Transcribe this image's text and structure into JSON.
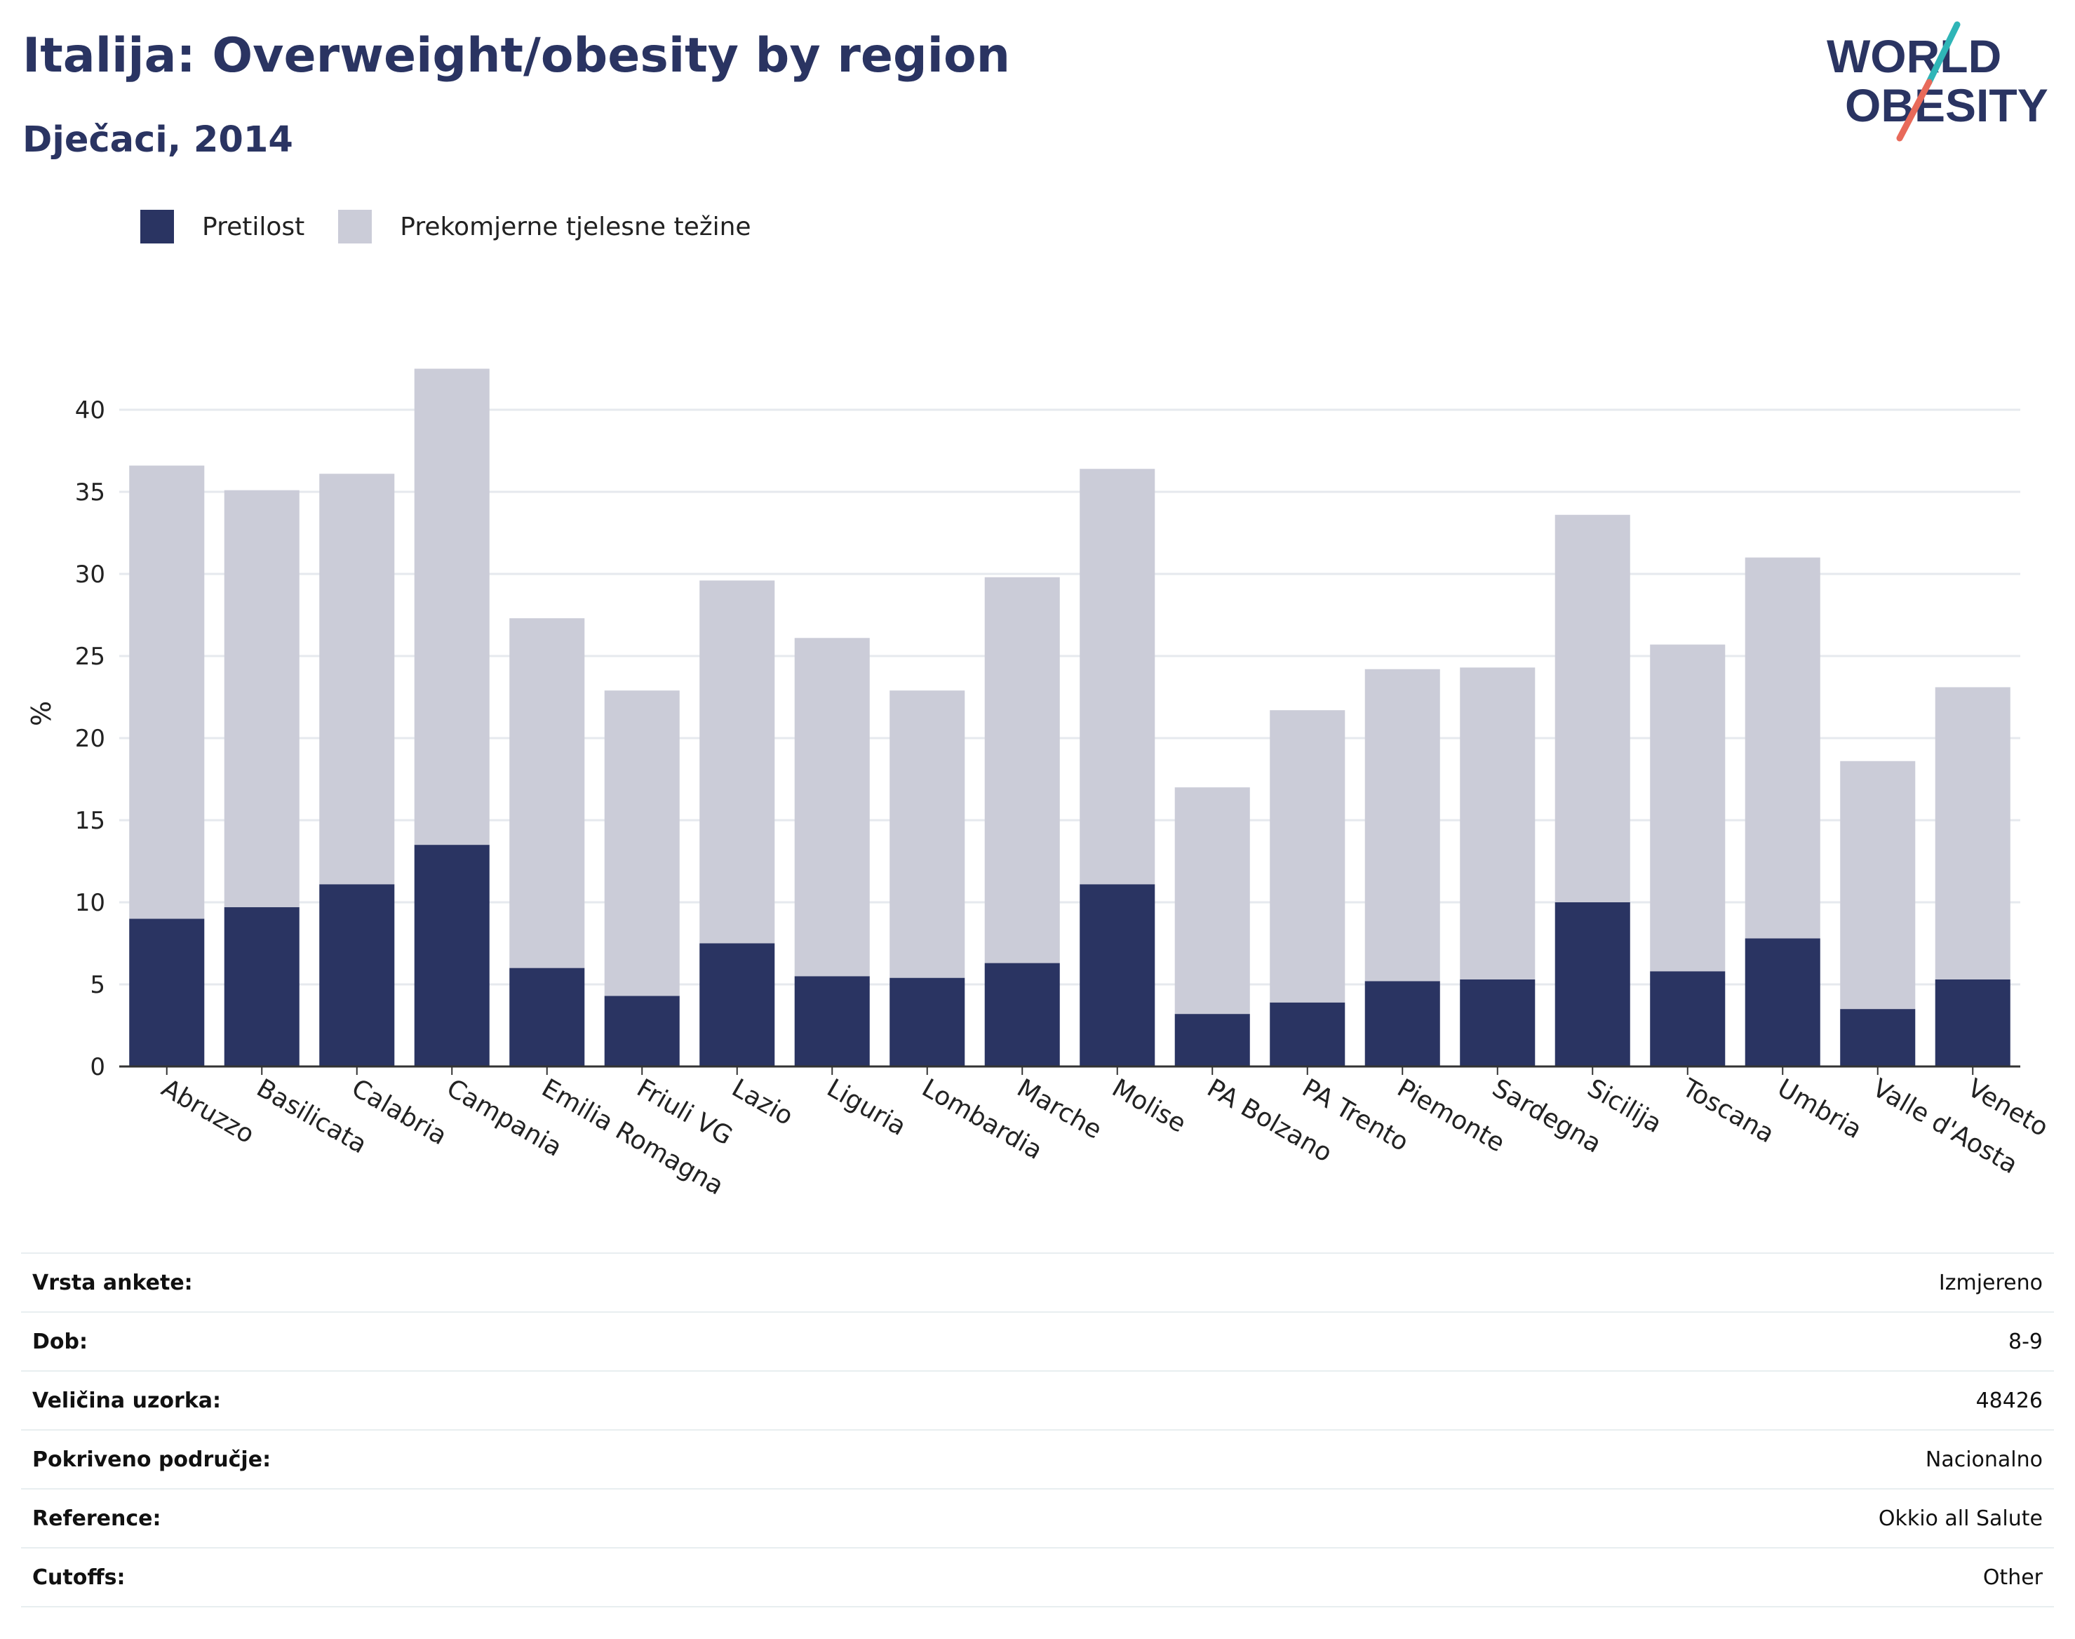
{
  "header": {
    "title": "Italija: Overweight/obesity by region",
    "subtitle": "Dječaci, 2014"
  },
  "logo": {
    "line1": "WORLD",
    "line2": "OBESITY"
  },
  "colors": {
    "obesity": "#2a3462",
    "overweight": "#cbccd8",
    "grid": "#e6e9ee",
    "axis": "#333333"
  },
  "chart_data": {
    "type": "bar",
    "stacked": true,
    "ylabel": "%",
    "ylim": [
      0,
      43
    ],
    "yticks": [
      0,
      5,
      10,
      15,
      20,
      25,
      30,
      35,
      40
    ],
    "grid": true,
    "legend_position": "top-left",
    "categories": [
      "Abruzzo",
      "Basilicata",
      "Calabria",
      "Campania",
      "Emilia Romagna",
      "Friuli VG",
      "Lazio",
      "Liguria",
      "Lombardia",
      "Marche",
      "Molise",
      "PA Bolzano",
      "PA Trento",
      "Piemonte",
      "Sardegna",
      "Sicilija",
      "Toscana",
      "Umbria",
      "Valle d'Aosta",
      "Veneto"
    ],
    "series": [
      {
        "name": "Pretilost",
        "values": [
          9.0,
          9.7,
          11.1,
          13.5,
          6.0,
          4.3,
          7.5,
          5.5,
          5.4,
          6.3,
          11.1,
          3.2,
          3.9,
          5.2,
          5.3,
          10.0,
          5.8,
          7.8,
          3.5,
          5.3
        ]
      },
      {
        "name": "Prekomjerne tjelesne težine",
        "values": [
          27.6,
          25.4,
          25.0,
          29.0,
          21.3,
          18.6,
          22.1,
          20.6,
          17.5,
          23.5,
          25.3,
          13.8,
          17.8,
          19.0,
          19.0,
          23.6,
          19.9,
          23.2,
          15.1,
          17.8
        ]
      }
    ]
  },
  "meta": [
    {
      "label": "Vrsta ankete:",
      "value": "Izmjereno"
    },
    {
      "label": "Dob:",
      "value": "8-9"
    },
    {
      "label": "Veličina uzorka:",
      "value": "48426"
    },
    {
      "label": "Pokriveno područje:",
      "value": "Nacionalno"
    },
    {
      "label": "Reference:",
      "value": "Okkio all Salute"
    },
    {
      "label": "Cutoffs:",
      "value": "Other"
    }
  ]
}
